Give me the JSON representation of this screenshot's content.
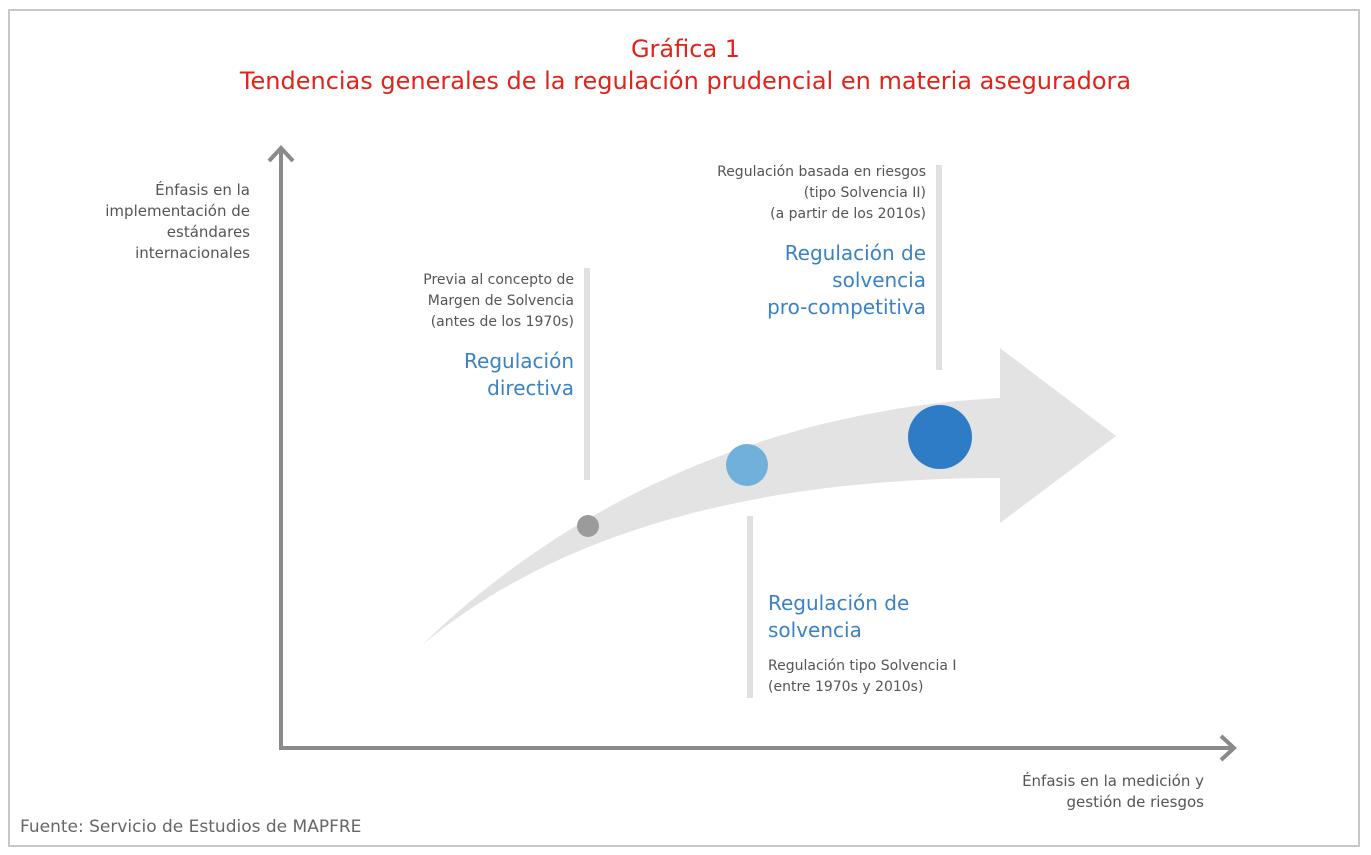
{
  "title": {
    "line1": "Gráfica 1",
    "line2": "Tendencias generales de la regulación prudencial en materia aseguradora"
  },
  "y_axis_label": [
    "Énfasis en la",
    "implementación de",
    "estándares",
    "internacionales"
  ],
  "x_axis_label": [
    "Énfasis en la medición y",
    "gestión de riesgos"
  ],
  "stages": [
    {
      "name": [
        "Regulación",
        "directiva"
      ],
      "note": [
        "Previa al concepto de",
        "Margen de Solvencia",
        "(antes de los 1970s)"
      ],
      "marker_color": "#9b9b9b"
    },
    {
      "name": [
        "Regulación de",
        "solvencia"
      ],
      "note": [
        "Regulación tipo Solvencia I",
        "(entre 1970s y 2010s)"
      ],
      "marker_color": "#72b0dc"
    },
    {
      "name": [
        "Regulación de",
        "solvencia",
        "pro-competitiva"
      ],
      "note": [
        "Regulación basada en riesgos",
        "(tipo Solvencia II)",
        "(a partir de los 2010s)"
      ],
      "marker_color": "#2f7cc6"
    }
  ],
  "colors": {
    "title": "#e2231a",
    "stage_text": "#3a82c4",
    "axis": "#8a8a8a",
    "arrow": "#e3e3e3",
    "divider": "#e0e0e0"
  },
  "source": "Fuente: Servicio de Estudios de MAPFRE"
}
